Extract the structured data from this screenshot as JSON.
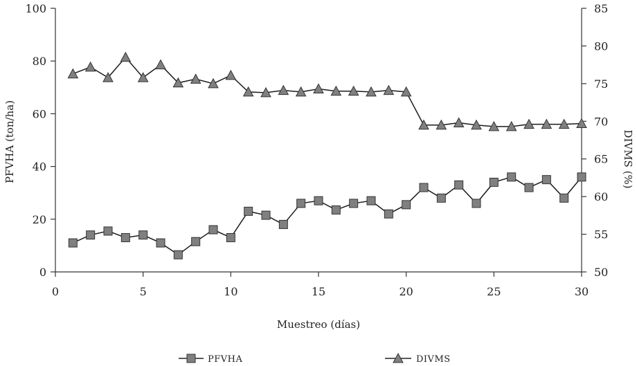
{
  "chart_data": {
    "type": "line",
    "xlabel": "Muestreo (días)",
    "ylabel_left": "PFVHA (ton/ha)",
    "ylabel_right": "DIVMS (%)",
    "xlim": [
      0,
      30
    ],
    "ylim_left": [
      0,
      100
    ],
    "ylim_right": [
      50,
      85
    ],
    "xticks": [
      "0",
      "5",
      "10",
      "15",
      "20",
      "25",
      "30"
    ],
    "yticks_left": [
      "0",
      "20",
      "40",
      "60",
      "80",
      "100"
    ],
    "yticks_right": [
      "50",
      "55",
      "60",
      "65",
      "70",
      "75",
      "80",
      "85"
    ],
    "grid": false,
    "legend_position": "bottom",
    "series": [
      {
        "name": "PFVHA",
        "axis": "left",
        "marker": "square",
        "x": [
          1,
          2,
          3,
          4,
          5,
          6,
          7,
          8,
          9,
          10,
          11,
          12,
          13,
          14,
          15,
          16,
          17,
          18,
          19,
          20,
          21,
          22,
          23,
          24,
          25,
          26,
          27,
          28,
          29,
          30
        ],
        "values": [
          11,
          14,
          15.5,
          13,
          14,
          11,
          6.5,
          11.5,
          16,
          13,
          23,
          21.5,
          18,
          26,
          27,
          23.5,
          26,
          27,
          22,
          25.5,
          32,
          28,
          33,
          26,
          34,
          36,
          32,
          35,
          28,
          36
        ]
      },
      {
        "name": "DIVMS",
        "axis": "right",
        "marker": "triangle",
        "x": [
          1,
          2,
          3,
          4,
          5,
          6,
          7,
          8,
          9,
          10,
          11,
          12,
          13,
          14,
          15,
          16,
          17,
          18,
          19,
          20,
          21,
          22,
          23,
          24,
          25,
          26,
          27,
          28,
          29,
          30
        ],
        "values": [
          76.3,
          77.2,
          75.8,
          78.5,
          75.8,
          77.5,
          75.1,
          75.6,
          75,
          76.1,
          73.9,
          73.8,
          74.1,
          73.9,
          74.3,
          74,
          74,
          73.9,
          74.1,
          73.9,
          69.5,
          69.5,
          69.8,
          69.5,
          69.3,
          69.3,
          69.6,
          69.6,
          69.6,
          69.7
        ]
      }
    ]
  }
}
